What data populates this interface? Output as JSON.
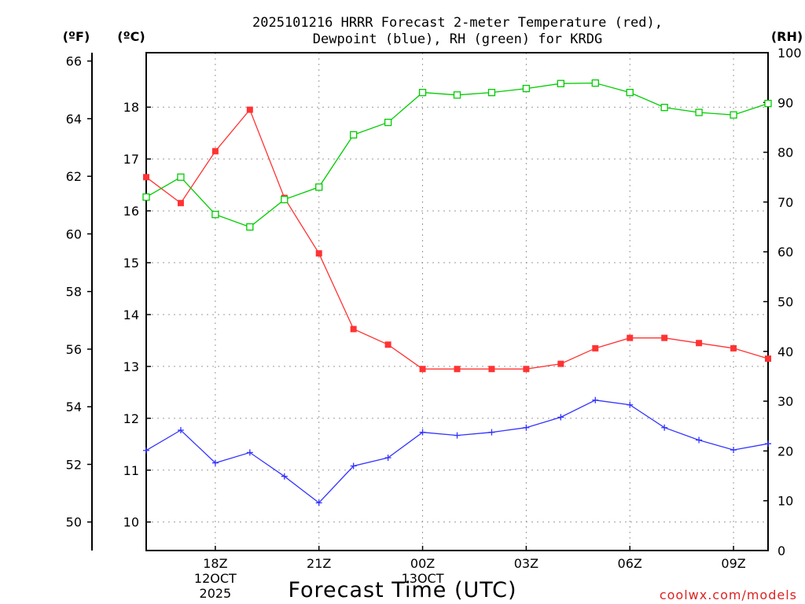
{
  "chart_data": {
    "type": "line",
    "title_line1": "2025101216 HRRR Forecast 2-meter Temperature (red),",
    "title_line2": "Dewpoint (blue), RH (green) for KRDG",
    "unit_f": "(ºF)",
    "unit_c": "(ºC)",
    "unit_rh": "(RH)",
    "xlabel": "Forecast Time (UTC)",
    "credit": "coolwx.com/models",
    "xlim": [
      -2,
      16
    ],
    "ylim_c": [
      9.45,
      19.05
    ],
    "ylim_f": [
      49.01,
      66.29
    ],
    "ylim_rh": [
      0,
      100
    ],
    "x_ticks": [
      {
        "x": 0,
        "label": "18Z",
        "sub1": "12OCT",
        "sub2": "2025"
      },
      {
        "x": 3,
        "label": "21Z",
        "sub1": "",
        "sub2": ""
      },
      {
        "x": 6,
        "label": "00Z",
        "sub1": "13OCT",
        "sub2": ""
      },
      {
        "x": 9,
        "label": "03Z",
        "sub1": "",
        "sub2": ""
      },
      {
        "x": 12,
        "label": "06Z",
        "sub1": "",
        "sub2": ""
      },
      {
        "x": 15,
        "label": "09Z",
        "sub1": "",
        "sub2": ""
      }
    ],
    "f_ticks": [
      "50",
      "52",
      "54",
      "56",
      "58",
      "60",
      "62",
      "64",
      "66"
    ],
    "c_ticks": [
      "10",
      "11",
      "12",
      "13",
      "14",
      "15",
      "16",
      "17",
      "18"
    ],
    "rh_ticks": [
      "0",
      "10",
      "20",
      "30",
      "40",
      "50",
      "60",
      "70",
      "80",
      "90",
      "100"
    ],
    "x": [
      -2,
      -1,
      0,
      1,
      2,
      3,
      4,
      5,
      6,
      7,
      8,
      9,
      10,
      11,
      12,
      13,
      14,
      15,
      16
    ],
    "series": [
      {
        "name": "Temperature",
        "axis": "C",
        "color": "#ff3333",
        "marker": "filled-square",
        "values": [
          16.65,
          16.15,
          17.15,
          17.95,
          16.25,
          15.18,
          13.72,
          13.42,
          12.95,
          12.95,
          12.95,
          12.95,
          13.05,
          13.35,
          13.55,
          13.55,
          13.45,
          13.35,
          13.15
        ]
      },
      {
        "name": "Dewpoint",
        "axis": "C",
        "color": "#3333ff",
        "marker": "plus",
        "values": [
          11.38,
          11.77,
          11.14,
          11.34,
          10.88,
          10.37,
          11.08,
          11.24,
          11.73,
          11.67,
          11.73,
          11.82,
          12.02,
          12.35,
          12.26,
          11.82,
          11.58,
          11.39,
          11.51
        ]
      },
      {
        "name": "RH",
        "axis": "RH",
        "color": "#00cc00",
        "marker": "open-square",
        "values": [
          71,
          75,
          67.5,
          65,
          70.5,
          73,
          83.5,
          86,
          92,
          91.5,
          92,
          92.8,
          93.8,
          93.9,
          92,
          89,
          88,
          87.5,
          89.8
        ]
      }
    ]
  }
}
